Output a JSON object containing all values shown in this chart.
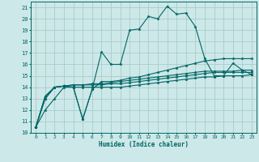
{
  "xlabel": "Humidex (Indice chaleur)",
  "background_color": "#cde8e8",
  "grid_color": "#a8cccc",
  "line_color": "#006666",
  "xlim": [
    -0.5,
    23.5
  ],
  "ylim": [
    10,
    21.5
  ],
  "xtick_labels": [
    "0",
    "1",
    "2",
    "3",
    "4",
    "5",
    "6",
    "7",
    "8",
    "9",
    "10",
    "11",
    "12",
    "13",
    "14",
    "15",
    "16",
    "17",
    "18",
    "19",
    "20",
    "21",
    "22",
    "23"
  ],
  "ytick_values": [
    10,
    11,
    12,
    13,
    14,
    15,
    16,
    17,
    18,
    19,
    20,
    21
  ],
  "series": [
    [
      10.5,
      13.2,
      14.0,
      14.1,
      14.0,
      11.2,
      13.8,
      17.1,
      16.0,
      16.0,
      19.0,
      19.1,
      20.2,
      20.0,
      21.1,
      20.4,
      20.5,
      19.3,
      16.5,
      15.0,
      15.0,
      16.1,
      15.5,
      15.1
    ],
    [
      10.5,
      13.2,
      14.0,
      14.1,
      14.0,
      11.2,
      13.8,
      14.5,
      14.5,
      14.6,
      14.8,
      14.9,
      15.1,
      15.3,
      15.5,
      15.7,
      15.9,
      16.1,
      16.3,
      16.4,
      16.5,
      16.5,
      16.5,
      16.5
    ],
    [
      10.5,
      13.0,
      14.0,
      14.1,
      14.2,
      14.2,
      14.2,
      14.2,
      14.3,
      14.3,
      14.4,
      14.5,
      14.6,
      14.7,
      14.8,
      14.9,
      15.0,
      15.1,
      15.2,
      15.3,
      15.3,
      15.3,
      15.3,
      15.3
    ],
    [
      10.5,
      13.0,
      14.0,
      14.1,
      14.2,
      14.2,
      14.3,
      14.3,
      14.4,
      14.5,
      14.6,
      14.7,
      14.8,
      14.9,
      15.0,
      15.1,
      15.2,
      15.3,
      15.4,
      15.4,
      15.4,
      15.4,
      15.5,
      15.5
    ],
    [
      10.5,
      12.0,
      13.0,
      14.0,
      14.0,
      14.0,
      14.0,
      14.0,
      14.0,
      14.0,
      14.1,
      14.2,
      14.3,
      14.4,
      14.5,
      14.6,
      14.7,
      14.8,
      14.9,
      14.9,
      15.0,
      15.0,
      15.0,
      15.1
    ]
  ]
}
